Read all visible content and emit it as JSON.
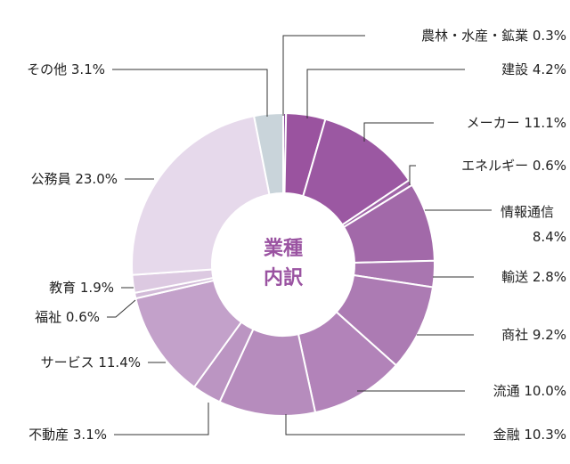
{
  "chart_data": {
    "type": "pie",
    "center_label": [
      "業種",
      "内訳"
    ],
    "slices": [
      {
        "label": "農林・水産・鉱業",
        "value": 0.3,
        "value_text": "0.3%",
        "color": "#8e4f9f"
      },
      {
        "label": "建設",
        "value": 4.2,
        "value_text": "4.2%",
        "color": "#9a539f"
      },
      {
        "label": "メーカー",
        "value": 11.1,
        "value_text": "11.1%",
        "color": "#9b58a2"
      },
      {
        "label": "エネルギー",
        "value": 0.6,
        "value_text": "0.6%",
        "color": "#a066a8"
      },
      {
        "label": "情報通信",
        "value": 8.4,
        "value_text": "8.4%",
        "color": "#a269a9"
      },
      {
        "label": "輸送",
        "value": 2.8,
        "value_text": "2.8%",
        "color": "#a976b0"
      },
      {
        "label": "商社",
        "value": 9.2,
        "value_text": "9.2%",
        "color": "#ac7bb3"
      },
      {
        "label": "流通",
        "value": 10.0,
        "value_text": "10.0%",
        "color": "#b283b9"
      },
      {
        "label": "金融",
        "value": 10.3,
        "value_text": "10.3%",
        "color": "#b68cbd"
      },
      {
        "label": "不動産",
        "value": 3.1,
        "value_text": "3.1%",
        "color": "#bb95c2"
      },
      {
        "label": "サービス",
        "value": 11.4,
        "value_text": "11.4%",
        "color": "#c3a1ca"
      },
      {
        "label": "福祉",
        "value": 0.6,
        "value_text": "0.6%",
        "color": "#d2bbd8"
      },
      {
        "label": "教育",
        "value": 1.9,
        "value_text": "1.9%",
        "color": "#dcc9e1"
      },
      {
        "label": "公務員",
        "value": 23.0,
        "value_text": "23.0%",
        "color": "#e6d9eb"
      },
      {
        "label": "その他",
        "value": 3.1,
        "value_text": "3.1%",
        "color": "#c9d4da"
      }
    ],
    "center_text_color": "#9a53a1"
  }
}
